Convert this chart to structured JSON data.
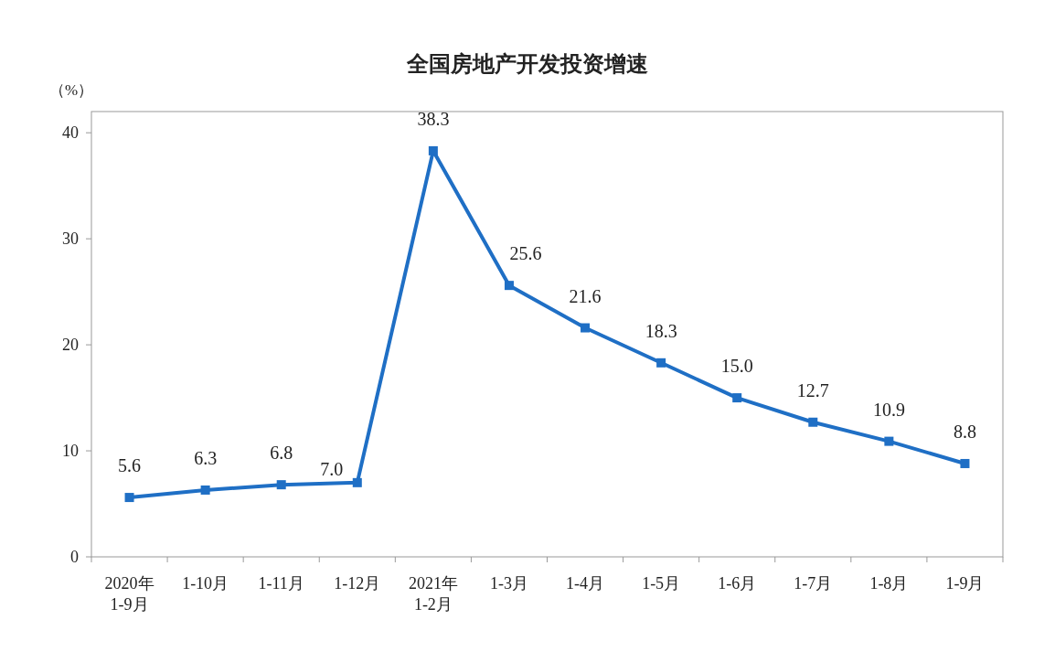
{
  "chart_data": {
    "type": "line",
    "title": "全国房地产开发投资增速",
    "ylabel": "（%）",
    "categories": [
      "2020年\n1-9月",
      "1-10月",
      "1-11月",
      "1-12月",
      "2021年\n1-2月",
      "1-3月",
      "1-4月",
      "1-5月",
      "1-6月",
      "1-7月",
      "1-8月",
      "1-9月"
    ],
    "series": [
      {
        "color": "#1f6fc5",
        "values": [
          5.6,
          6.3,
          6.8,
          7.0,
          38.3,
          25.6,
          21.6,
          18.3,
          15.0,
          12.7,
          10.9,
          8.8
        ],
        "value_labels": [
          "5.6",
          "6.3",
          "6.8",
          "7.0",
          "38.3",
          "25.6",
          "21.6",
          "18.3",
          "15.0",
          "12.7",
          "10.9",
          "8.8"
        ]
      }
    ],
    "ylim": [
      0,
      42
    ],
    "yticks": [
      0,
      10,
      20,
      30,
      40
    ],
    "grid": false,
    "marker": "square",
    "line_style": "solid"
  }
}
